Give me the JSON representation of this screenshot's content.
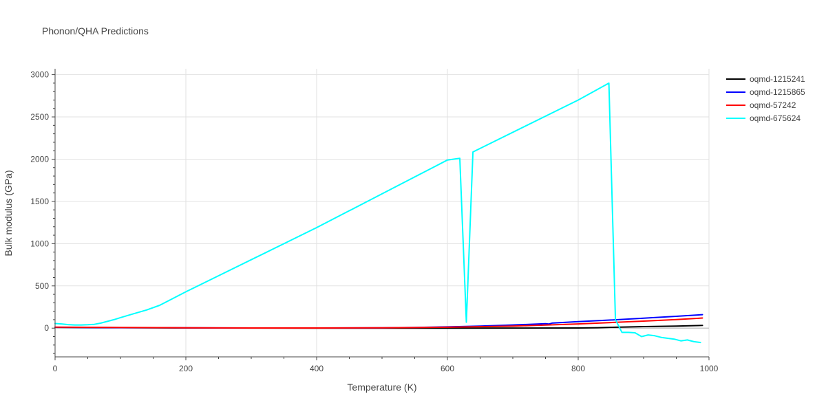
{
  "chart_data": {
    "type": "line",
    "title": "Phonon/QHA Predictions",
    "xlabel": "Temperature (K)",
    "ylabel": "Bulk modulus (GPa)",
    "xlim": [
      0,
      1000
    ],
    "ylim": [
      -340,
      3070
    ],
    "xticks": [
      0,
      200,
      400,
      600,
      800,
      1000
    ],
    "yticks": [
      0,
      500,
      1000,
      1500,
      2000,
      2500,
      3000
    ],
    "grid": true,
    "legend": "right",
    "series": [
      {
        "name": "oqmd-1215241",
        "color": "#000000",
        "x": [
          0,
          100,
          200,
          300,
          400,
          500,
          600,
          700,
          800,
          830,
          850,
          900,
          950,
          990
        ],
        "y": [
          10,
          6,
          3,
          1,
          0,
          0,
          0,
          1,
          2,
          5,
          10,
          18,
          25,
          32
        ]
      },
      {
        "name": "oqmd-1215865",
        "color": "#0000ff",
        "x": [
          0,
          100,
          200,
          300,
          400,
          500,
          550,
          600,
          650,
          700,
          750,
          755,
          760,
          800,
          850,
          900,
          950,
          990
        ],
        "y": [
          10,
          6,
          4,
          2,
          2,
          4,
          8,
          15,
          25,
          38,
          52,
          48,
          60,
          77,
          96,
          118,
          140,
          160
        ]
      },
      {
        "name": "oqmd-57242",
        "color": "#ff0000",
        "x": [
          0,
          100,
          200,
          300,
          400,
          500,
          550,
          600,
          650,
          700,
          750,
          800,
          850,
          900,
          950,
          990
        ],
        "y": [
          12,
          8,
          4,
          2,
          2,
          4,
          7,
          11,
          17,
          25,
          36,
          50,
          66,
          83,
          101,
          120
        ]
      },
      {
        "name": "oqmd-675624",
        "color": "#00ffff",
        "x": [
          0,
          10,
          20,
          30,
          40,
          50,
          60,
          70,
          80,
          90,
          100,
          120,
          140,
          160,
          200,
          300,
          400,
          500,
          600,
          619,
          629,
          639,
          800,
          847,
          857,
          867,
          877,
          887,
          897,
          907,
          917,
          927,
          937,
          947,
          957,
          967,
          977,
          987
        ],
        "y": [
          55,
          50,
          42,
          38,
          38,
          40,
          45,
          60,
          80,
          100,
          125,
          170,
          215,
          270,
          430,
          810,
          1190,
          1590,
          1990,
          2010,
          70,
          2085,
          2700,
          2900,
          100,
          -50,
          -50,
          -55,
          -100,
          -80,
          -90,
          -110,
          -120,
          -130,
          -150,
          -140,
          -160,
          -170
        ]
      }
    ]
  }
}
